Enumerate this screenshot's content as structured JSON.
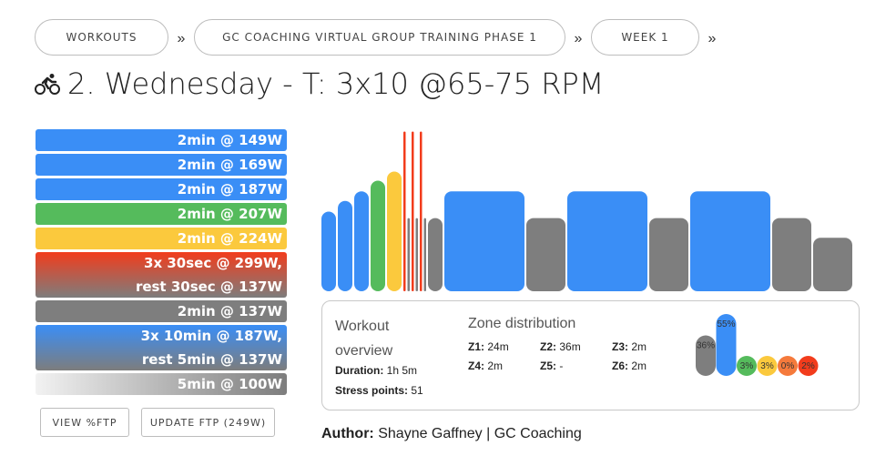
{
  "breadcrumbs": [
    {
      "label": "WORKOUTS"
    },
    {
      "label": "GC COACHING VIRTUAL GROUP TRAINING PHASE 1"
    },
    {
      "label": "WEEK 1"
    }
  ],
  "breadcrumb_separator": "»",
  "title": "2. Wednesday - T: 3x10 @65-75 RPM",
  "title_icon": "cyclist-icon",
  "steps": [
    {
      "lines": [
        "2min @ 149W"
      ],
      "color": "#3a8ef6"
    },
    {
      "lines": [
        "2min @ 169W"
      ],
      "color": "#3a8ef6"
    },
    {
      "lines": [
        "2min @ 187W"
      ],
      "color": "#3a8ef6"
    },
    {
      "lines": [
        "2min @ 207W"
      ],
      "color": "#55bb5c"
    },
    {
      "lines": [
        "2min @ 224W"
      ],
      "color": "#fbc93d"
    },
    {
      "lines": [
        "3x 30sec @ 299W,",
        "rest 30sec @ 137W"
      ],
      "color": "#f23c1c"
    },
    {
      "lines": [
        "2min @ 137W"
      ],
      "color": "#7e7e7e"
    },
    {
      "lines": [
        "3x 10min @ 187W,",
        "rest 5min @ 137W"
      ],
      "color": "#3a8ef6"
    },
    {
      "lines": [
        "5min @ 100W"
      ],
      "color": "#7e7e7e"
    }
  ],
  "buttons": {
    "view_ftp": "VIEW %FTP",
    "update_ftp": "UPDATE FTP (249W)"
  },
  "overview": {
    "title": "Workout overview",
    "duration_label": "Duration:",
    "duration_value": "1h 5m",
    "stress_label": "Stress points:",
    "stress_value": "51"
  },
  "zone_distribution": {
    "title": "Zone distribution",
    "zones": [
      {
        "label": "Z1:",
        "value": "24m"
      },
      {
        "label": "Z2:",
        "value": "36m"
      },
      {
        "label": "Z3:",
        "value": "2m"
      },
      {
        "label": "Z4:",
        "value": "2m"
      },
      {
        "label": "Z5:",
        "value": "-"
      },
      {
        "label": "Z6:",
        "value": "2m"
      }
    ],
    "percentages": [
      {
        "label": "36%",
        "value": 36,
        "color": "#7e7e7e"
      },
      {
        "label": "55%",
        "value": 55,
        "color": "#3a8ef6"
      },
      {
        "label": "3%",
        "value": 3,
        "color": "#55bb5c"
      },
      {
        "label": "3%",
        "value": 3,
        "color": "#fbc93d"
      },
      {
        "label": "0%",
        "value": 0,
        "color": "#f57a3c"
      },
      {
        "label": "2%",
        "value": 2,
        "color": "#f23c1c"
      }
    ]
  },
  "author": {
    "label": "Author:",
    "name": "Shayne Gaffney | GC Coaching"
  },
  "workout_profile": [
    {
      "minutes": 2,
      "watts": 149,
      "color": "#3a8ef6"
    },
    {
      "minutes": 2,
      "watts": 169,
      "color": "#3a8ef6"
    },
    {
      "minutes": 2,
      "watts": 187,
      "color": "#3a8ef6"
    },
    {
      "minutes": 2,
      "watts": 207,
      "color": "#55bb5c"
    },
    {
      "minutes": 2,
      "watts": 224,
      "color": "#fbc93d"
    },
    {
      "minutes": 0.5,
      "watts": 299,
      "color": "#f23c1c"
    },
    {
      "minutes": 0.5,
      "watts": 137,
      "color": "#7e7e7e"
    },
    {
      "minutes": 0.5,
      "watts": 299,
      "color": "#f23c1c"
    },
    {
      "minutes": 0.5,
      "watts": 137,
      "color": "#7e7e7e"
    },
    {
      "minutes": 0.5,
      "watts": 299,
      "color": "#f23c1c"
    },
    {
      "minutes": 0.5,
      "watts": 137,
      "color": "#7e7e7e"
    },
    {
      "minutes": 2,
      "watts": 137,
      "color": "#7e7e7e"
    },
    {
      "minutes": 10,
      "watts": 187,
      "color": "#3a8ef6"
    },
    {
      "minutes": 5,
      "watts": 137,
      "color": "#7e7e7e"
    },
    {
      "minutes": 10,
      "watts": 187,
      "color": "#3a8ef6"
    },
    {
      "minutes": 5,
      "watts": 137,
      "color": "#7e7e7e"
    },
    {
      "minutes": 10,
      "watts": 187,
      "color": "#3a8ef6"
    },
    {
      "minutes": 5,
      "watts": 137,
      "color": "#7e7e7e"
    },
    {
      "minutes": 5,
      "watts": 100,
      "color": "#7e7e7e"
    }
  ]
}
